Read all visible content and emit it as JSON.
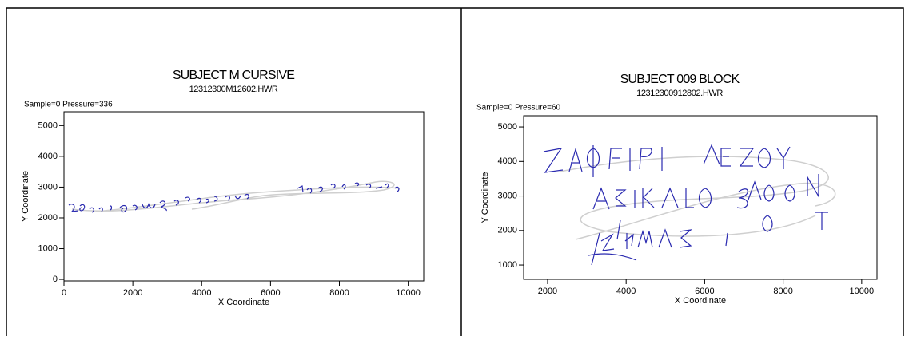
{
  "chart_data": [
    {
      "type": "line",
      "title": "SUBJECT M CURSIVE",
      "subtitle": "12312300M12602.HWR",
      "annotation": "Sample=0 Pressure=336",
      "x_label": "X Coordinate",
      "y_label": "Y Coordinate",
      "xlim": [
        0,
        10450
      ],
      "xticks": [
        0,
        2000,
        4000,
        6000,
        8000,
        10000
      ],
      "ylim": [
        -50,
        5450
      ],
      "yticks": [
        0,
        1000,
        2000,
        3000,
        4000,
        5000
      ]
    },
    {
      "type": "line",
      "title": "SUBJECT 009 BLOCK",
      "subtitle": "12312300912802.HWR",
      "annotation": "Sample=0 Pressure=60",
      "x_label": "X Coordinate",
      "y_label": "Y Coordinate",
      "xlim": [
        1390,
        10390
      ],
      "xticks": [
        2000,
        4000,
        6000,
        8000,
        10000
      ],
      "ylim": [
        585,
        5325
      ],
      "yticks": [
        1000,
        2000,
        3000,
        4000,
        5000
      ]
    }
  ]
}
